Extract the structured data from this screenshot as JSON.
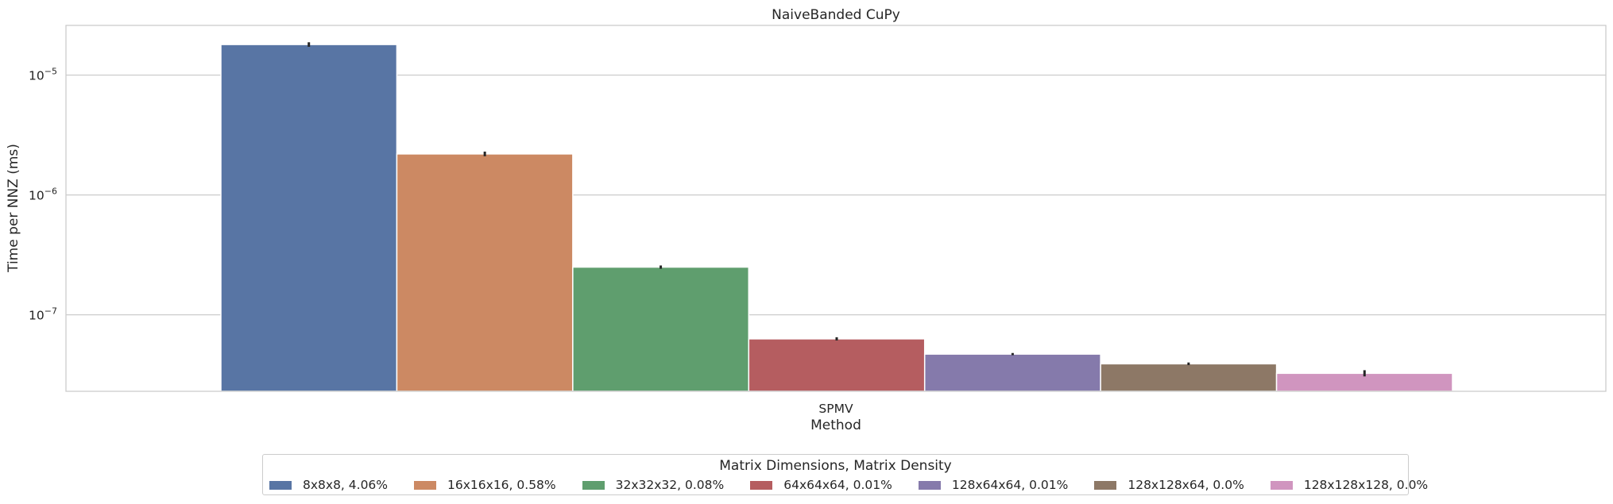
{
  "chart_data": {
    "type": "bar",
    "title": "NaiveBanded CuPy",
    "xlabel": "Method",
    "ylabel": "Time per NNZ (ms)",
    "yscale": "log",
    "ylim": [
      2.3e-08,
      2.6e-05
    ],
    "yticks": [
      {
        "value": 1e-05,
        "base": "10",
        "exp": "−5"
      },
      {
        "value": 1e-06,
        "base": "10",
        "exp": "−6"
      },
      {
        "value": 1e-07,
        "base": "10",
        "exp": "−7"
      }
    ],
    "categories": [
      "SPMV"
    ],
    "grid": true,
    "legend_title": "Matrix Dimensions, Matrix Density",
    "legend_position": "bottom-center",
    "series": [
      {
        "name": "8x8x8, 4.06%",
        "values": [
          1.8e-05
        ],
        "err": [
          1.88e-05
        ],
        "color": "#5875a4"
      },
      {
        "name": "16x16x16, 0.58%",
        "values": [
          2.2e-06
        ],
        "err": [
          2.3e-06
        ],
        "color": "#cc8963"
      },
      {
        "name": "32x32x32, 0.08%",
        "values": [
          2.5e-07
        ],
        "err": [
          2.58e-07
        ],
        "color": "#5f9e6e"
      },
      {
        "name": "64x64x64, 0.01%",
        "values": [
          6.3e-08
        ],
        "err": [
          6.5e-08
        ],
        "color": "#b55d60"
      },
      {
        "name": "128x64x64, 0.01%",
        "values": [
          4.7e-08
        ],
        "err": [
          4.8e-08
        ],
        "color": "#857aab"
      },
      {
        "name": "128x128x64, 0.0%",
        "values": [
          3.9e-08
        ],
        "err": [
          4e-08
        ],
        "color": "#8d7866"
      },
      {
        "name": "128x128x128, 0.0%",
        "values": [
          3.25e-08
        ],
        "err": [
          3.45e-08
        ],
        "color": "#d095bf"
      }
    ]
  }
}
